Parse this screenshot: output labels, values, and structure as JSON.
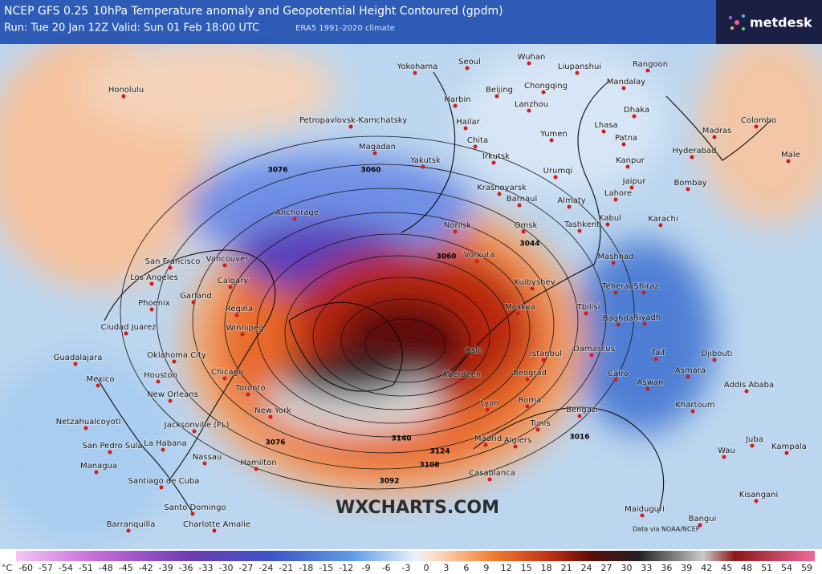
{
  "header": {
    "model": "NCEP GFS 0.25",
    "title": "10hPa Temperature anomaly and Geopotential Height Contoured (gpdm)",
    "run": "Run: Tue 20 Jan 12Z Valid: Sun 01 Feb 18:00 UTC",
    "climate": "ERA5 1991-2020 climate",
    "brand": "metdesk"
  },
  "watermark": "WXCHARTS.COM",
  "credit": "Data via NOAA/NCEP",
  "contour_labels": [
    "3076",
    "3060",
    "3140",
    "3108",
    "3092",
    "3044",
    "3124",
    "3016",
    "3076",
    "3060"
  ],
  "cities": [
    "Honolulu",
    "Yokohama",
    "Seoul",
    "Wuhan",
    "Liupanshui",
    "Rangoon",
    "Mandalay",
    "Chongqing",
    "Beijing",
    "Harbin",
    "Lanzhou",
    "Dhaka",
    "Petropavlovsk-Kamchatsky",
    "Hailar",
    "Lhasa",
    "Madras",
    "Colombo",
    "Yumen",
    "Patna",
    "Chita",
    "Magadan",
    "Hyderabad",
    "Irkutsk",
    "Male",
    "Yakutsk",
    "Kanpur",
    "Urumqi",
    "Jaipur",
    "Bombay",
    "Krasnoyarsk",
    "Lahore",
    "Barnaul",
    "Almaty",
    "Anchorage",
    "Norilsk",
    "Kabul",
    "Karachi",
    "Tashkent",
    "Omsk",
    "San Francisco",
    "Vancouver",
    "Vorkuta",
    "Mashhad",
    "Calgary",
    "Los Angeles",
    "Kuibyshev",
    "Phoenix",
    "Garland",
    "Regina",
    "Teheran",
    "Shiraz",
    "Moskva",
    "Ciudad Juarez",
    "Winnipeg",
    "Tbilisi",
    "Baghdad",
    "Riyadh",
    "Guadalajara",
    "Oklahoma City",
    "Oslo",
    "Damascus",
    "Taif",
    "Djibouti",
    "Chicago",
    "Houston",
    "Istanbul",
    "Beograd",
    "Asmara",
    "Mexico",
    "Aswan",
    "Cairo",
    "Addis Ababa",
    "Aberdeen",
    "New Orleans",
    "Toronto",
    "Roma",
    "Khartoum",
    "Lyon",
    "Bengazi",
    "New York",
    "Netzahualcoyotl",
    "Jacksonville (FL)",
    "Tunis",
    "Madrid",
    "Algiers",
    "Juba",
    "Kampala",
    "San Pedro Sula",
    "La Habana",
    "Nassau",
    "Wau",
    "Managua",
    "Hamilton",
    "Casablanca",
    "Santiago de Cuba",
    "Kisangani",
    "Santo Domingo",
    "Maiduguri",
    "Bangui",
    "Barranquilla",
    "Charlotte Amalie"
  ],
  "scale": {
    "unit": "°C",
    "ticks": [
      -60,
      -57,
      -54,
      -51,
      -48,
      -45,
      -42,
      -39,
      -36,
      -33,
      -30,
      -27,
      -24,
      -21,
      -18,
      -15,
      -12,
      -9,
      -6,
      -3,
      0,
      3,
      6,
      9,
      12,
      15,
      18,
      21,
      24,
      27,
      30,
      33,
      36,
      39,
      42,
      45,
      48,
      51,
      54,
      59
    ]
  }
}
